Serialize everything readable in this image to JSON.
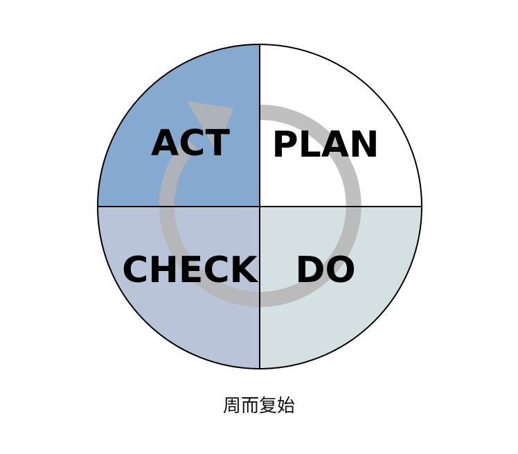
{
  "diagram": {
    "quadrants": [
      {
        "key": "act",
        "label": "ACT",
        "color": "#86a9d0"
      },
      {
        "key": "plan",
        "label": "PLAN",
        "color": "#ffffff"
      },
      {
        "key": "check",
        "label": "CHECK",
        "color": "#bac4d9"
      },
      {
        "key": "do",
        "label": "DO",
        "color": "#d4e0e1"
      }
    ],
    "cycle_arrow_color": "#b5b5b5",
    "outline_color": "#000000",
    "caption": "周而复始"
  }
}
